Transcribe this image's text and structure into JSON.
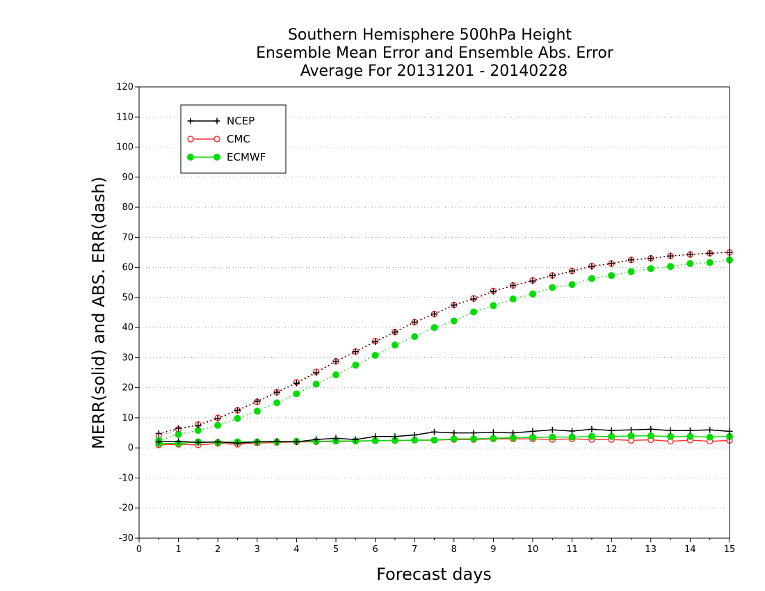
{
  "chart_data": {
    "type": "line",
    "title_lines": [
      "Southern Hemisphere 500hPa Height",
      "Ensemble Mean Error and Ensemble Abs. Error",
      "Average For 20131201 - 20140228"
    ],
    "xlabel": "Forecast days",
    "ylabel": "MERR(solid) and ABS. ERR(dash)",
    "xlim": [
      0,
      15
    ],
    "ylim": [
      -30,
      120
    ],
    "xticks": [
      0,
      1,
      2,
      3,
      4,
      5,
      6,
      7,
      8,
      9,
      10,
      11,
      12,
      13,
      14,
      15
    ],
    "yticks": [
      -30,
      -20,
      -10,
      0,
      10,
      20,
      30,
      40,
      50,
      60,
      70,
      80,
      90,
      100,
      110,
      120
    ],
    "grid": "dotted horizontal",
    "legend_position": "top-left",
    "x": [
      0.5,
      1,
      1.5,
      2,
      2.5,
      3,
      3.5,
      4,
      4.5,
      5,
      5.5,
      6,
      6.5,
      7,
      7.5,
      8,
      8.5,
      9,
      9.5,
      10,
      10.5,
      11,
      11.5,
      12,
      12.5,
      13,
      13.5,
      14,
      14.5,
      15
    ],
    "series": [
      {
        "name": "NCEP",
        "color": "#000000",
        "marker": "plus",
        "merr": [
          2.0,
          2.2,
          1.8,
          2.0,
          1.6,
          2.0,
          2.2,
          2.0,
          2.8,
          3.2,
          2.8,
          3.8,
          3.8,
          4.3,
          5.3,
          5.0,
          5.0,
          5.2,
          5.0,
          5.5,
          6.0,
          5.6,
          6.2,
          5.8,
          6.0,
          6.2,
          5.8,
          5.8,
          6.0,
          5.5
        ],
        "abserr": [
          4.8,
          6.5,
          7.5,
          9.8,
          12.5,
          15.5,
          18.5,
          21.5,
          25.0,
          28.8,
          32.0,
          35.3,
          38.5,
          41.8,
          44.5,
          47.5,
          49.5,
          52.0,
          54.0,
          55.5,
          57.3,
          58.8,
          60.3,
          61.3,
          62.5,
          63.0,
          63.8,
          64.3,
          64.7,
          65.0
        ]
      },
      {
        "name": "CMC",
        "color": "#ff3333",
        "marker": "open-circle",
        "merr": [
          1.0,
          1.2,
          1.0,
          1.5,
          1.2,
          1.6,
          1.8,
          2.0,
          2.0,
          2.2,
          2.2,
          2.4,
          2.4,
          2.6,
          2.6,
          2.8,
          2.8,
          3.0,
          3.0,
          3.0,
          2.8,
          3.0,
          2.8,
          2.8,
          2.5,
          2.7,
          2.2,
          2.6,
          2.2,
          2.5
        ],
        "abserr": [
          4.0,
          6.2,
          7.8,
          10.0,
          12.5,
          15.3,
          18.5,
          21.8,
          25.3,
          28.8,
          32.0,
          35.5,
          38.5,
          41.8,
          44.5,
          47.5,
          49.7,
          52.2,
          54.0,
          55.7,
          57.3,
          58.8,
          60.5,
          61.3,
          62.5,
          63.0,
          63.8,
          64.3,
          64.7,
          65.0
        ]
      },
      {
        "name": "ECMWF",
        "color": "#00dd00",
        "marker": "filled-circle",
        "merr": [
          1.5,
          1.5,
          2.0,
          1.8,
          2.0,
          2.0,
          2.0,
          2.2,
          2.2,
          2.3,
          2.3,
          2.4,
          2.5,
          2.6,
          2.6,
          3.0,
          3.0,
          3.2,
          3.4,
          3.5,
          3.6,
          3.6,
          3.8,
          3.8,
          4.0,
          4.0,
          3.8,
          3.8,
          3.6,
          3.8
        ],
        "abserr": [
          2.5,
          4.5,
          5.8,
          7.5,
          9.8,
          12.2,
          15.0,
          18.0,
          21.2,
          24.3,
          27.5,
          30.8,
          34.2,
          37.0,
          40.0,
          42.2,
          45.2,
          47.3,
          49.5,
          51.2,
          53.3,
          54.3,
          56.3,
          57.3,
          58.6,
          59.6,
          60.3,
          61.3,
          61.6,
          62.5
        ]
      }
    ]
  }
}
